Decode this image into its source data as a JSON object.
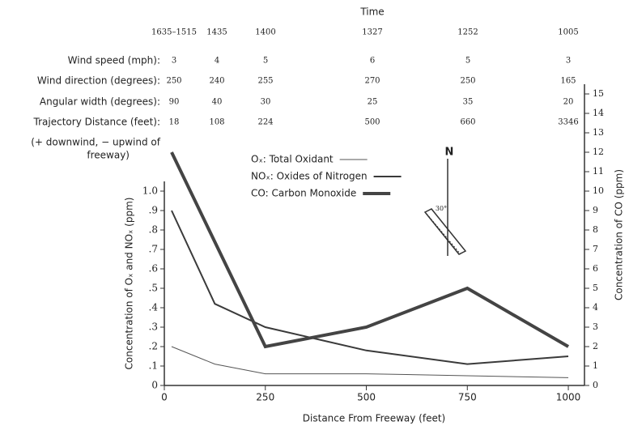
{
  "conditions": {
    "title": "Time",
    "times": [
      "1635–1515",
      "1435",
      "1400",
      "1327",
      "1252",
      "1005"
    ],
    "rows": [
      {
        "label": "Wind speed (mph):",
        "values": [
          "3",
          "4",
          "5",
          "6",
          "5",
          "3"
        ]
      },
      {
        "label": "Wind direction (degrees):",
        "values": [
          "250",
          "240",
          "255",
          "270",
          "250",
          "165"
        ]
      },
      {
        "label": "Angular width (degrees):",
        "values": [
          "90",
          "40",
          "30",
          "25",
          "35",
          "20"
        ]
      },
      {
        "label": "Trajectory Distance (feet):",
        "values": [
          "18",
          "108",
          "224",
          "500",
          "660",
          "3346"
        ]
      }
    ],
    "note": [
      "(+ downwind, − upwind of",
      "freeway)"
    ]
  },
  "compass": {
    "north": "N",
    "angle": "30°"
  },
  "chart_data": {
    "type": "line",
    "x_label": "Distance From Freeway (feet)",
    "y_label": "Concentration of Oₓ and NOₓ (ppm)",
    "y2_label": "Concentration of CO (ppm)",
    "xlim": [
      0,
      1040
    ],
    "xticks": [
      0,
      250,
      500,
      750,
      1000
    ],
    "ylim": [
      0,
      1.05
    ],
    "yticks": [
      0,
      {
        "value": 0.1,
        "label": ".1"
      },
      {
        "value": 0.2,
        "label": ".2"
      },
      {
        "value": 0.3,
        "label": ".3"
      },
      {
        "value": 0.4,
        "label": ".4"
      },
      {
        "value": 0.5,
        "label": ".5"
      },
      {
        "value": 0.6,
        "label": ".6"
      },
      {
        "value": 0.7,
        "label": ".7"
      },
      {
        "value": 0.8,
        "label": ".8"
      },
      {
        "value": 0.9,
        "label": ".9"
      },
      {
        "value": 1,
        "label": "1.0"
      }
    ],
    "y2lim": [
      0,
      15.5
    ],
    "y2ticks": [
      0,
      1,
      2,
      3,
      4,
      5,
      6,
      7,
      8,
      9,
      10,
      11,
      12,
      13,
      14,
      15
    ],
    "series": [
      {
        "name": "Oₓ: Total Oxidant",
        "color": "#555555",
        "width": 1,
        "x": [
          18,
          125,
          250,
          500,
          750,
          1000
        ],
        "values": [
          0.2,
          0.11,
          0.06,
          0.06,
          0.05,
          0.04
        ]
      },
      {
        "name": "NOₓ: Oxides of Nitrogen",
        "color": "#3a3a3a",
        "width": 2,
        "x": [
          18,
          125,
          250,
          500,
          750,
          1000
        ],
        "values": [
          0.9,
          0.42,
          0.3,
          0.18,
          0.11,
          0.15
        ]
      },
      {
        "name": "CO: Carbon Monoxide",
        "color": "#444444",
        "width": 4,
        "axis": "y2",
        "x": [
          18,
          250,
          500,
          750,
          1000
        ],
        "values": [
          12,
          2,
          3,
          5,
          2
        ]
      }
    ]
  }
}
